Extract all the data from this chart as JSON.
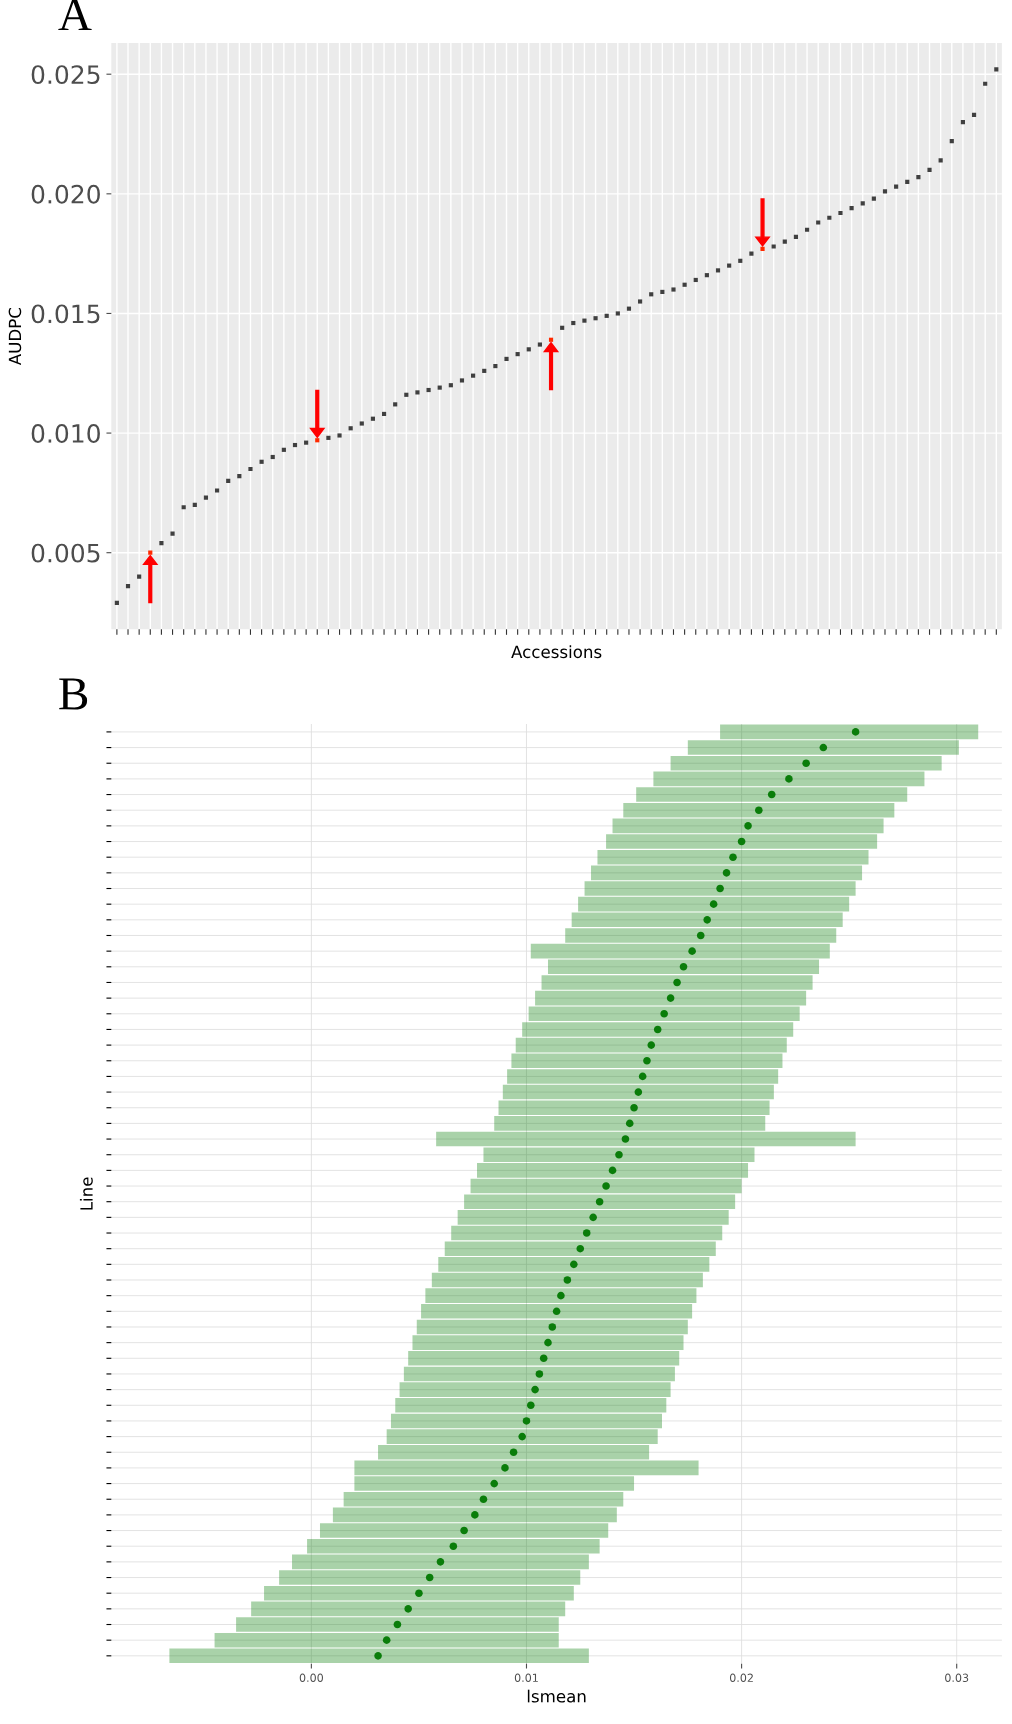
{
  "chart_data": [
    {
      "type": "scatter",
      "title": "A",
      "xlabel": "Accessions",
      "ylabel": "AUDPC",
      "grid": true,
      "marker": "square",
      "categories": [
        null,
        null,
        null,
        null,
        null,
        null,
        null,
        null,
        null,
        null,
        null,
        null,
        null,
        null,
        null,
        null,
        null,
        null,
        null,
        null,
        null,
        null,
        null,
        null,
        null,
        null,
        null,
        null,
        null,
        null,
        null,
        null,
        null,
        null,
        null,
        null,
        null,
        null,
        null,
        null,
        null,
        null,
        null,
        null,
        null,
        null,
        null,
        null,
        null,
        null,
        null,
        null,
        null,
        null,
        null,
        null,
        null,
        null,
        null,
        null,
        null,
        null,
        null,
        null,
        null,
        null,
        null,
        null,
        null,
        null,
        null,
        null,
        null,
        null,
        null,
        null,
        null,
        null,
        null,
        null
      ],
      "values": [
        0.0029,
        0.0036,
        0.004,
        0.005,
        0.0054,
        0.0058,
        0.0069,
        0.007,
        0.0073,
        0.0076,
        0.008,
        0.0082,
        0.0085,
        0.0088,
        0.009,
        0.0093,
        0.0095,
        0.0096,
        0.0097,
        0.0098,
        0.0099,
        0.0102,
        0.0104,
        0.0106,
        0.0108,
        0.0112,
        0.0116,
        0.0117,
        0.0118,
        0.0119,
        0.012,
        0.0122,
        0.0124,
        0.0126,
        0.0128,
        0.0131,
        0.0133,
        0.0135,
        0.0137,
        0.0139,
        0.0144,
        0.0146,
        0.0147,
        0.0148,
        0.0149,
        0.015,
        0.0152,
        0.0155,
        0.0158,
        0.0159,
        0.016,
        0.0162,
        0.0164,
        0.0166,
        0.0168,
        0.017,
        0.0172,
        0.0175,
        0.0177,
        0.0178,
        0.018,
        0.0182,
        0.0185,
        0.0188,
        0.019,
        0.0192,
        0.0194,
        0.0196,
        0.0198,
        0.0201,
        0.0203,
        0.0205,
        0.0207,
        0.021,
        0.0214,
        0.0222,
        0.023,
        0.0233,
        0.0246,
        0.0252
      ],
      "colors": [
        "#404040",
        "#404040",
        "#404040",
        "#ff2a00",
        "#404040",
        "#404040",
        "#404040",
        "#404040",
        "#404040",
        "#404040",
        "#404040",
        "#404040",
        "#404040",
        "#404040",
        "#404040",
        "#404040",
        "#404040",
        "#404040",
        "#ff2a00",
        "#404040",
        "#404040",
        "#404040",
        "#404040",
        "#404040",
        "#404040",
        "#404040",
        "#404040",
        "#404040",
        "#404040",
        "#404040",
        "#404040",
        "#404040",
        "#404040",
        "#404040",
        "#404040",
        "#404040",
        "#404040",
        "#404040",
        "#404040",
        "#ff2a00",
        "#404040",
        "#404040",
        "#404040",
        "#404040",
        "#404040",
        "#404040",
        "#404040",
        "#404040",
        "#404040",
        "#404040",
        "#404040",
        "#404040",
        "#404040",
        "#404040",
        "#404040",
        "#404040",
        "#404040",
        "#404040",
        "#ff2a00",
        "#404040",
        "#404040",
        "#404040",
        "#404040",
        "#404040",
        "#404040",
        "#404040",
        "#404040",
        "#404040",
        "#404040",
        "#404040",
        "#404040",
        "#404040",
        "#404040",
        "#404040",
        "#404040",
        "#404040",
        "#404040",
        "#404040",
        "#404040",
        "#404040"
      ],
      "ylim": [
        0.0018,
        0.0263
      ],
      "yticks": [
        {
          "value": 0.005,
          "label": "0.005"
        },
        {
          "value": 0.01,
          "label": "0.010"
        },
        {
          "value": 0.015,
          "label": "0.015"
        },
        {
          "value": 0.02,
          "label": "0.020"
        },
        {
          "value": 0.025,
          "label": "0.025"
        }
      ]
    },
    {
      "type": "scatter",
      "title": "B",
      "xlabel": "lsmean",
      "ylabel": "Line",
      "grid": true,
      "marker": "circle",
      "orientation": "horizontal",
      "categories": [
        null,
        null,
        null,
        null,
        null,
        null,
        null,
        null,
        null,
        null,
        null,
        null,
        null,
        null,
        null,
        null,
        null,
        null,
        null,
        null,
        null,
        null,
        null,
        null,
        null,
        null,
        null,
        null,
        null,
        null,
        null,
        null,
        null,
        null,
        null,
        null,
        null,
        null,
        null,
        null,
        null,
        null,
        null,
        null,
        null,
        null,
        null,
        null,
        null,
        null,
        null,
        null,
        null,
        null,
        null,
        null,
        null,
        null,
        null,
        null
      ],
      "series": [
        {
          "color": "#0a7d0a",
          "values": [
            0.0253,
            0.0238,
            0.023,
            0.0222,
            0.0214,
            0.0208,
            0.0203,
            0.02,
            0.0196,
            0.0193,
            0.019,
            0.0187,
            0.0184,
            0.0181,
            0.0177,
            0.0173,
            0.017,
            0.0167,
            0.0164,
            0.0161,
            0.0158,
            0.0156,
            0.0154,
            0.0152,
            0.015,
            0.0148,
            0.0146,
            0.0143,
            0.014,
            0.0137,
            0.0134,
            0.0131,
            0.0128,
            0.0125,
            0.0122,
            0.0119,
            0.0116,
            0.0114,
            0.0112,
            0.011,
            0.0108,
            0.0106,
            0.0104,
            0.0102,
            0.01,
            0.0098,
            0.0094,
            0.009,
            0.0085,
            0.008,
            0.0076,
            0.0071,
            0.0066,
            0.006,
            0.0055,
            0.005,
            0.0045,
            0.004,
            0.0035,
            0.0031
          ],
          "errors": [
            [
              0.019,
              0.031
            ],
            [
              0.0175,
              0.0301
            ],
            [
              0.0167,
              0.0293
            ],
            [
              0.0159,
              0.0285
            ],
            [
              0.0151,
              0.0277
            ],
            [
              0.0145,
              0.0271
            ],
            [
              0.014,
              0.0266
            ],
            [
              0.0137,
              0.0263
            ],
            [
              0.0133,
              0.0259
            ],
            [
              0.013,
              0.0256
            ],
            [
              0.0127,
              0.0253
            ],
            [
              0.0124,
              0.025
            ],
            [
              0.0121,
              0.0247
            ],
            [
              0.0118,
              0.0244
            ],
            [
              0.0102,
              0.0241
            ],
            [
              0.011,
              0.0236
            ],
            [
              0.0107,
              0.0233
            ],
            [
              0.0104,
              0.023
            ],
            [
              0.0101,
              0.0227
            ],
            [
              0.0098,
              0.0224
            ],
            [
              0.0095,
              0.0221
            ],
            [
              0.0093,
              0.0219
            ],
            [
              0.0091,
              0.0217
            ],
            [
              0.0089,
              0.0215
            ],
            [
              0.0087,
              0.0213
            ],
            [
              0.0085,
              0.0211
            ],
            [
              0.0058,
              0.0253
            ],
            [
              0.008,
              0.0206
            ],
            [
              0.0077,
              0.0203
            ],
            [
              0.0074,
              0.02
            ],
            [
              0.0071,
              0.0197
            ],
            [
              0.0068,
              0.0194
            ],
            [
              0.0065,
              0.0191
            ],
            [
              0.0062,
              0.0188
            ],
            [
              0.0059,
              0.0185
            ],
            [
              0.0056,
              0.0182
            ],
            [
              0.0053,
              0.0179
            ],
            [
              0.0051,
              0.0177
            ],
            [
              0.0049,
              0.0175
            ],
            [
              0.0047,
              0.0173
            ],
            [
              0.0045,
              0.0171
            ],
            [
              0.0043,
              0.0169
            ],
            [
              0.0041,
              0.0167
            ],
            [
              0.0039,
              0.0165
            ],
            [
              0.0037,
              0.0163
            ],
            [
              0.0035,
              0.0161
            ],
            [
              0.0031,
              0.0157
            ],
            [
              0.002,
              0.018
            ],
            [
              0.002,
              0.015
            ],
            [
              0.0015,
              0.0145
            ],
            [
              0.001,
              0.0142
            ],
            [
              0.0004,
              0.0138
            ],
            [
              -0.0002,
              0.0134
            ],
            [
              -0.0009,
              0.0129
            ],
            [
              -0.0015,
              0.0125
            ],
            [
              -0.0022,
              0.0122
            ],
            [
              -0.0028,
              0.0118
            ],
            [
              -0.0035,
              0.0115
            ],
            [
              -0.0045,
              0.0115
            ],
            [
              -0.0066,
              0.0129
            ]
          ]
        }
      ],
      "xlim": [
        -0.0093,
        0.0321
      ],
      "xticks": [
        {
          "value": 0.0,
          "label": "0.00"
        },
        {
          "value": 0.01,
          "label": "0.01"
        },
        {
          "value": 0.02,
          "label": "0.02"
        },
        {
          "value": 0.03,
          "label": "0.03"
        }
      ]
    }
  ]
}
